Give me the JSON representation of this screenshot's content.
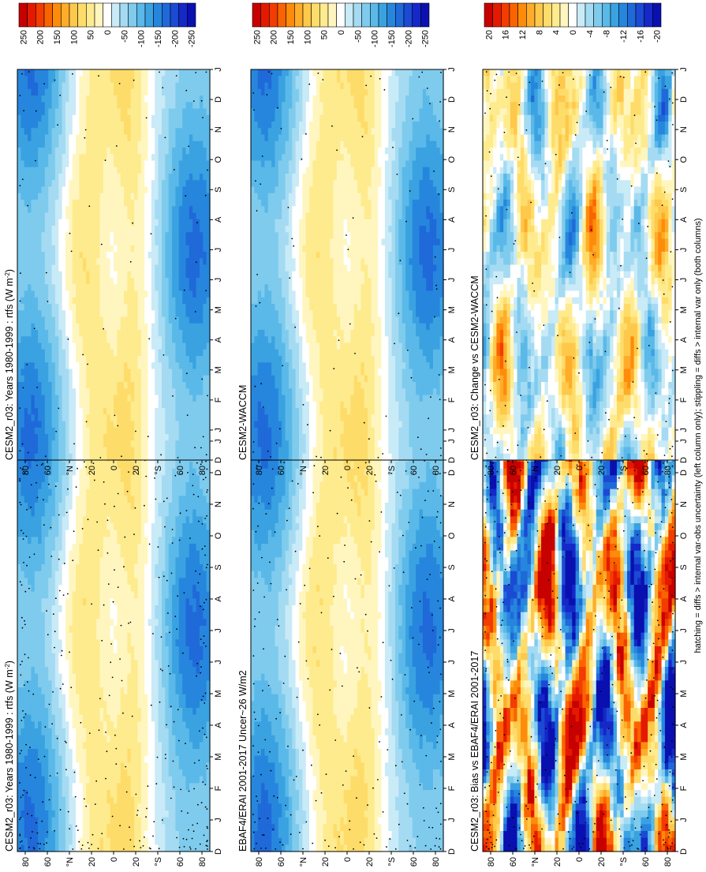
{
  "footnote": "hatching = diffs > internal var-obs uncertainty (left column only); stippling = diffs > internal var only (both columns)",
  "chart_data": [
    {
      "type": "heatmap",
      "title": "CESM2_r03: Years 1980-1999 : rtfs (W m",
      "title_sup": "-2",
      "title_end": ")",
      "months": [
        "D",
        "J",
        "F",
        "M",
        "A",
        "M",
        "J",
        "J",
        "A",
        "S",
        "O",
        "N",
        "D",
        "J"
      ],
      "lat_ticks": [
        "80",
        "60",
        "°N",
        "20",
        "0",
        "20",
        "°S",
        "60",
        "80"
      ],
      "legend": {
        "min": -250,
        "max": 250,
        "labels": [
          "250",
          "200",
          "150",
          "100",
          "50",
          "0",
          "-50",
          "-100",
          "-150",
          "-200",
          "-250"
        ]
      }
    },
    {
      "type": "heatmap",
      "title": "CESM2_r03: Years 1980-1999 : rtfs (W m",
      "title_sup": "-2",
      "title_end": ")",
      "months": [
        "D",
        "J",
        "F",
        "M",
        "A",
        "M",
        "J",
        "J",
        "A",
        "S",
        "O",
        "N",
        "D",
        "J"
      ],
      "lat_ticks": [
        "80",
        "60",
        "°N",
        "20",
        "0",
        "20",
        "°S",
        "60",
        "80"
      ],
      "legend": {
        "min": -250,
        "max": 250,
        "labels": [
          "250",
          "200",
          "150",
          "100",
          "50",
          "0",
          "-50",
          "-100",
          "-150",
          "-200",
          "-250"
        ]
      }
    },
    {
      "type": "heatmap",
      "title": "EBAF4/ERAI 2001-2017 Uncer~26 W/m2",
      "title_sup": "",
      "title_end": "",
      "months": [
        "D",
        "J",
        "F",
        "M",
        "A",
        "M",
        "J",
        "J",
        "A",
        "S",
        "O",
        "N",
        "D",
        "J"
      ],
      "lat_ticks": [
        "80",
        "60",
        "°N",
        "20",
        "0",
        "20",
        "°S",
        "60",
        "80"
      ],
      "legend": {
        "min": -250,
        "max": 250,
        "labels": [
          "250",
          "200",
          "150",
          "100",
          "50",
          "0",
          "-50",
          "-100",
          "-150",
          "-200",
          "-250"
        ]
      }
    },
    {
      "type": "heatmap",
      "title": "CESM2-WACCM",
      "title_sup": "",
      "title_end": "",
      "months": [
        "D",
        "J",
        "F",
        "M",
        "A",
        "M",
        "J",
        "J",
        "A",
        "S",
        "O",
        "N",
        "D",
        "J"
      ],
      "lat_ticks": [
        "80",
        "60",
        "°N",
        "20",
        "0",
        "20",
        "°S",
        "60",
        "80"
      ],
      "legend": {
        "min": -250,
        "max": 250,
        "labels": [
          "250",
          "200",
          "150",
          "100",
          "50",
          "0",
          "-50",
          "-100",
          "-150",
          "-200",
          "-250"
        ]
      }
    },
    {
      "type": "heatmap",
      "title": "CESM2_r03: Bias vs EBAF4/ERAI 2001-2017",
      "title_sup": "",
      "title_end": "",
      "months": [
        "D",
        "J",
        "F",
        "M",
        "A",
        "M",
        "J",
        "J",
        "A",
        "S",
        "O",
        "N",
        "D",
        "J"
      ],
      "lat_ticks": [
        "80",
        "60",
        "°N",
        "20",
        "0",
        "20",
        "°S",
        "60",
        "80"
      ],
      "legend": {
        "min": -20,
        "max": 20,
        "labels": [
          "20",
          "16",
          "12",
          "8",
          "4",
          "0",
          "-4",
          "-8",
          "-12",
          "-16",
          "-20"
        ]
      }
    },
    {
      "type": "heatmap",
      "title": "CESM2_r03: Change vs CESM2-WACCM",
      "title_sup": "",
      "title_end": "",
      "months": [
        "D",
        "J",
        "F",
        "M",
        "A",
        "M",
        "J",
        "J",
        "A",
        "S",
        "O",
        "N",
        "D",
        "J"
      ],
      "lat_ticks": [
        "80",
        "60",
        "°N",
        "20",
        "0",
        "20",
        "°S",
        "60",
        "80"
      ],
      "legend": {
        "min": -20,
        "max": 20,
        "labels": [
          "20",
          "16",
          "12",
          "8",
          "4",
          "0",
          "-4",
          "-8",
          "-12",
          "-16",
          "-20"
        ]
      }
    }
  ],
  "colors": {
    "warm": [
      "#c70000",
      "#e41a00",
      "#f23c00",
      "#fa6400",
      "#fd8c0a",
      "#feac2a",
      "#fec84a",
      "#fedc6a",
      "#feeb8e",
      "#fff6bf"
    ],
    "cool": [
      "#c9eaf7",
      "#a4dbf2",
      "#7fcbed",
      "#5ab9e8",
      "#3aa2e1",
      "#2686dd",
      "#1f69d9",
      "#1b4ad4",
      "#1528c8",
      "#0a10b0"
    ],
    "neutral": "#ffffff"
  }
}
